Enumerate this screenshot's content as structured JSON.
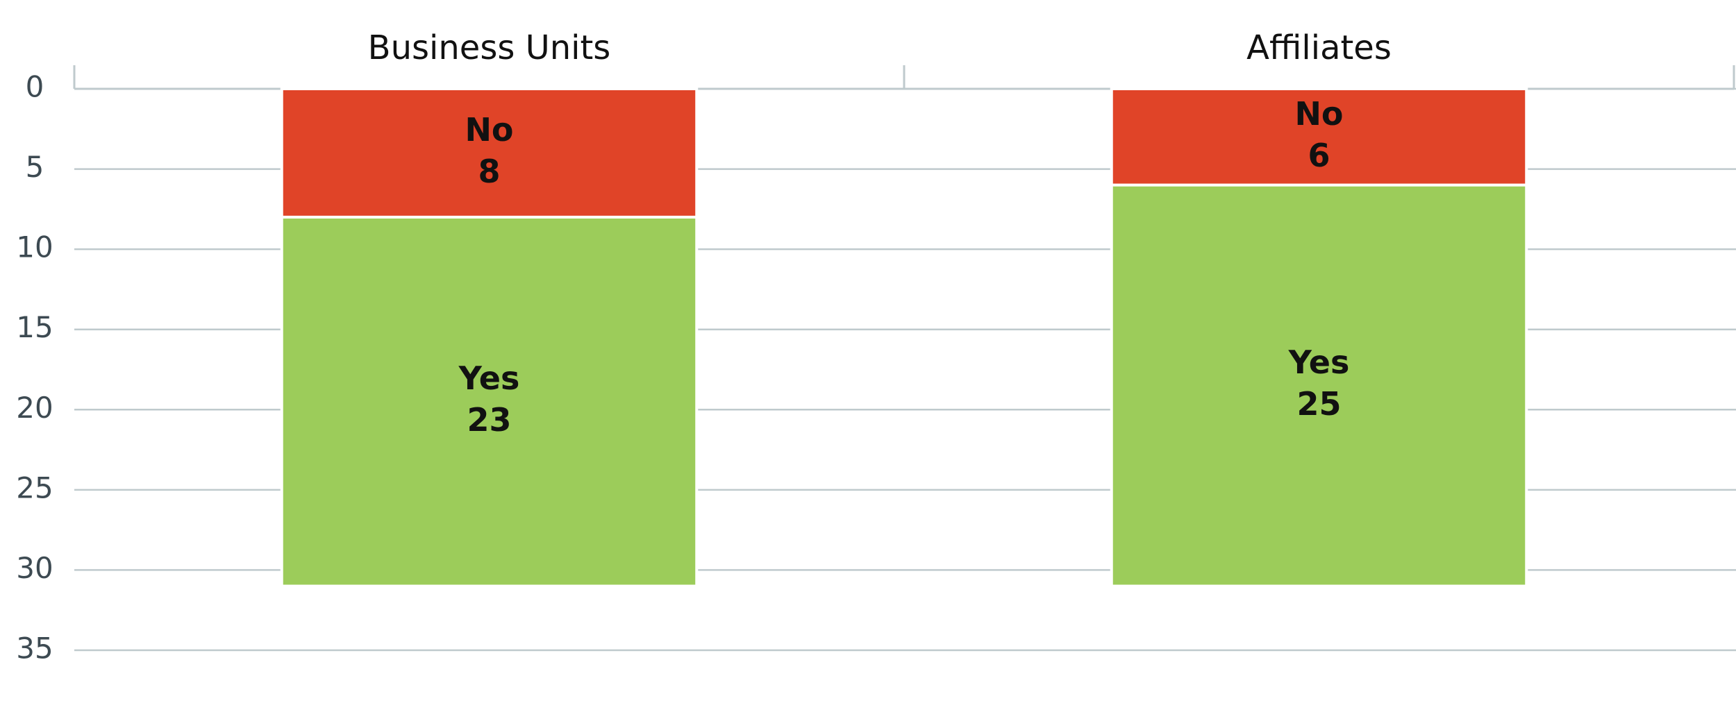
{
  "chart_data": {
    "type": "stacked-bar",
    "categories": [
      "Business Units",
      "Affiliates"
    ],
    "series": [
      {
        "name": "No",
        "color": "#e04428",
        "values": [
          8,
          6
        ]
      },
      {
        "name": "Yes",
        "color": "#9ccc5a",
        "values": [
          23,
          25
        ]
      }
    ],
    "ylim": [
      0,
      35
    ],
    "yticks": [
      0,
      5,
      10,
      15,
      20,
      25,
      30,
      35
    ],
    "y_reversed": true,
    "grid": true,
    "category_axis": "top"
  }
}
